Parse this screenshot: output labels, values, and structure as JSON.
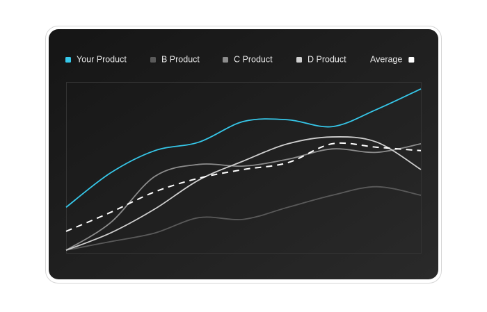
{
  "chart_data": {
    "type": "line",
    "categories": [
      null,
      null,
      null,
      null,
      null,
      null,
      null,
      null,
      null
    ],
    "ylim": [
      0,
      100
    ],
    "legend": "top",
    "series": [
      {
        "name": "Your Product",
        "color": "#36c8ea",
        "values": [
          27,
          47,
          60,
          65,
          77,
          78,
          74,
          84,
          96
        ]
      },
      {
        "name": "B Product",
        "color": "#5a5a5a",
        "values": [
          2,
          7,
          12,
          21,
          20,
          27,
          34,
          39,
          34
        ]
      },
      {
        "name": "C Product",
        "color": "#8c8c8c",
        "values": [
          2,
          18,
          45,
          52,
          51,
          55,
          61,
          59,
          64
        ]
      },
      {
        "name": "D Product",
        "color": "#cfcfcf",
        "values": [
          2,
          12,
          26,
          43,
          54,
          64,
          68,
          65,
          49
        ]
      },
      {
        "name": "Average",
        "color": "#ffffff",
        "dashed": true,
        "values": [
          13,
          24,
          36,
          44,
          49,
          53,
          64,
          62,
          60
        ]
      }
    ]
  }
}
